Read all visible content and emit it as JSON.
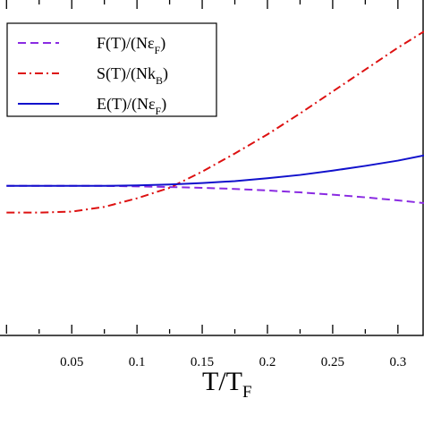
{
  "chart_data": {
    "type": "line",
    "xlabel": {
      "main": "T/T",
      "sub": "F"
    },
    "ylabel": "",
    "xlim": [
      -0.005,
      0.32
    ],
    "ylim": [
      -2.15,
      1.35
    ],
    "x_ticks": [
      0.05,
      0.1,
      0.15,
      0.2,
      0.25,
      0.3
    ],
    "x_tick_labels": [
      "0.05",
      "0.1",
      "0.15",
      "0.2",
      "0.25",
      "0.3"
    ],
    "grid": false,
    "legend_position": "top-left",
    "series": [
      {
        "name": "F(T)/(Nε_F)",
        "legend_main": "F(T)/(Nε",
        "legend_sub": "F",
        "legend_tail": ")",
        "color": "#8a2be2",
        "style": "dashed",
        "x": [
          0.0,
          0.025,
          0.05,
          0.075,
          0.1,
          0.125,
          0.15,
          0.175,
          0.2,
          0.225,
          0.25,
          0.275,
          0.3,
          0.32
        ],
        "y": [
          -0.6,
          -0.6,
          -0.6,
          -0.6,
          -0.605,
          -0.612,
          -0.62,
          -0.632,
          -0.648,
          -0.668,
          -0.692,
          -0.72,
          -0.752,
          -0.78
        ]
      },
      {
        "name": "S(T)/(Nk_B)",
        "legend_main": "S(T)/(Nk",
        "legend_sub": "B",
        "legend_tail": ")",
        "color": "#dd1111",
        "style": "dashdot",
        "x": [
          0.0,
          0.025,
          0.05,
          0.075,
          0.1,
          0.125,
          0.15,
          0.175,
          0.2,
          0.225,
          0.25,
          0.275,
          0.3,
          0.32
        ],
        "y": [
          -0.88,
          -0.88,
          -0.87,
          -0.82,
          -0.73,
          -0.62,
          -0.45,
          -0.26,
          -0.06,
          0.16,
          0.39,
          0.62,
          0.85,
          1.02
        ]
      },
      {
        "name": "E(T)/(Nε_F)",
        "legend_main": "E(T)/(Nε",
        "legend_sub": "F",
        "legend_tail": ")",
        "color": "#1111cc",
        "style": "solid",
        "x": [
          0.0,
          0.025,
          0.05,
          0.075,
          0.1,
          0.125,
          0.15,
          0.175,
          0.2,
          0.225,
          0.25,
          0.275,
          0.3,
          0.32
        ],
        "y": [
          -0.6,
          -0.6,
          -0.6,
          -0.6,
          -0.595,
          -0.585,
          -0.57,
          -0.55,
          -0.52,
          -0.485,
          -0.44,
          -0.39,
          -0.335,
          -0.28
        ]
      }
    ]
  }
}
